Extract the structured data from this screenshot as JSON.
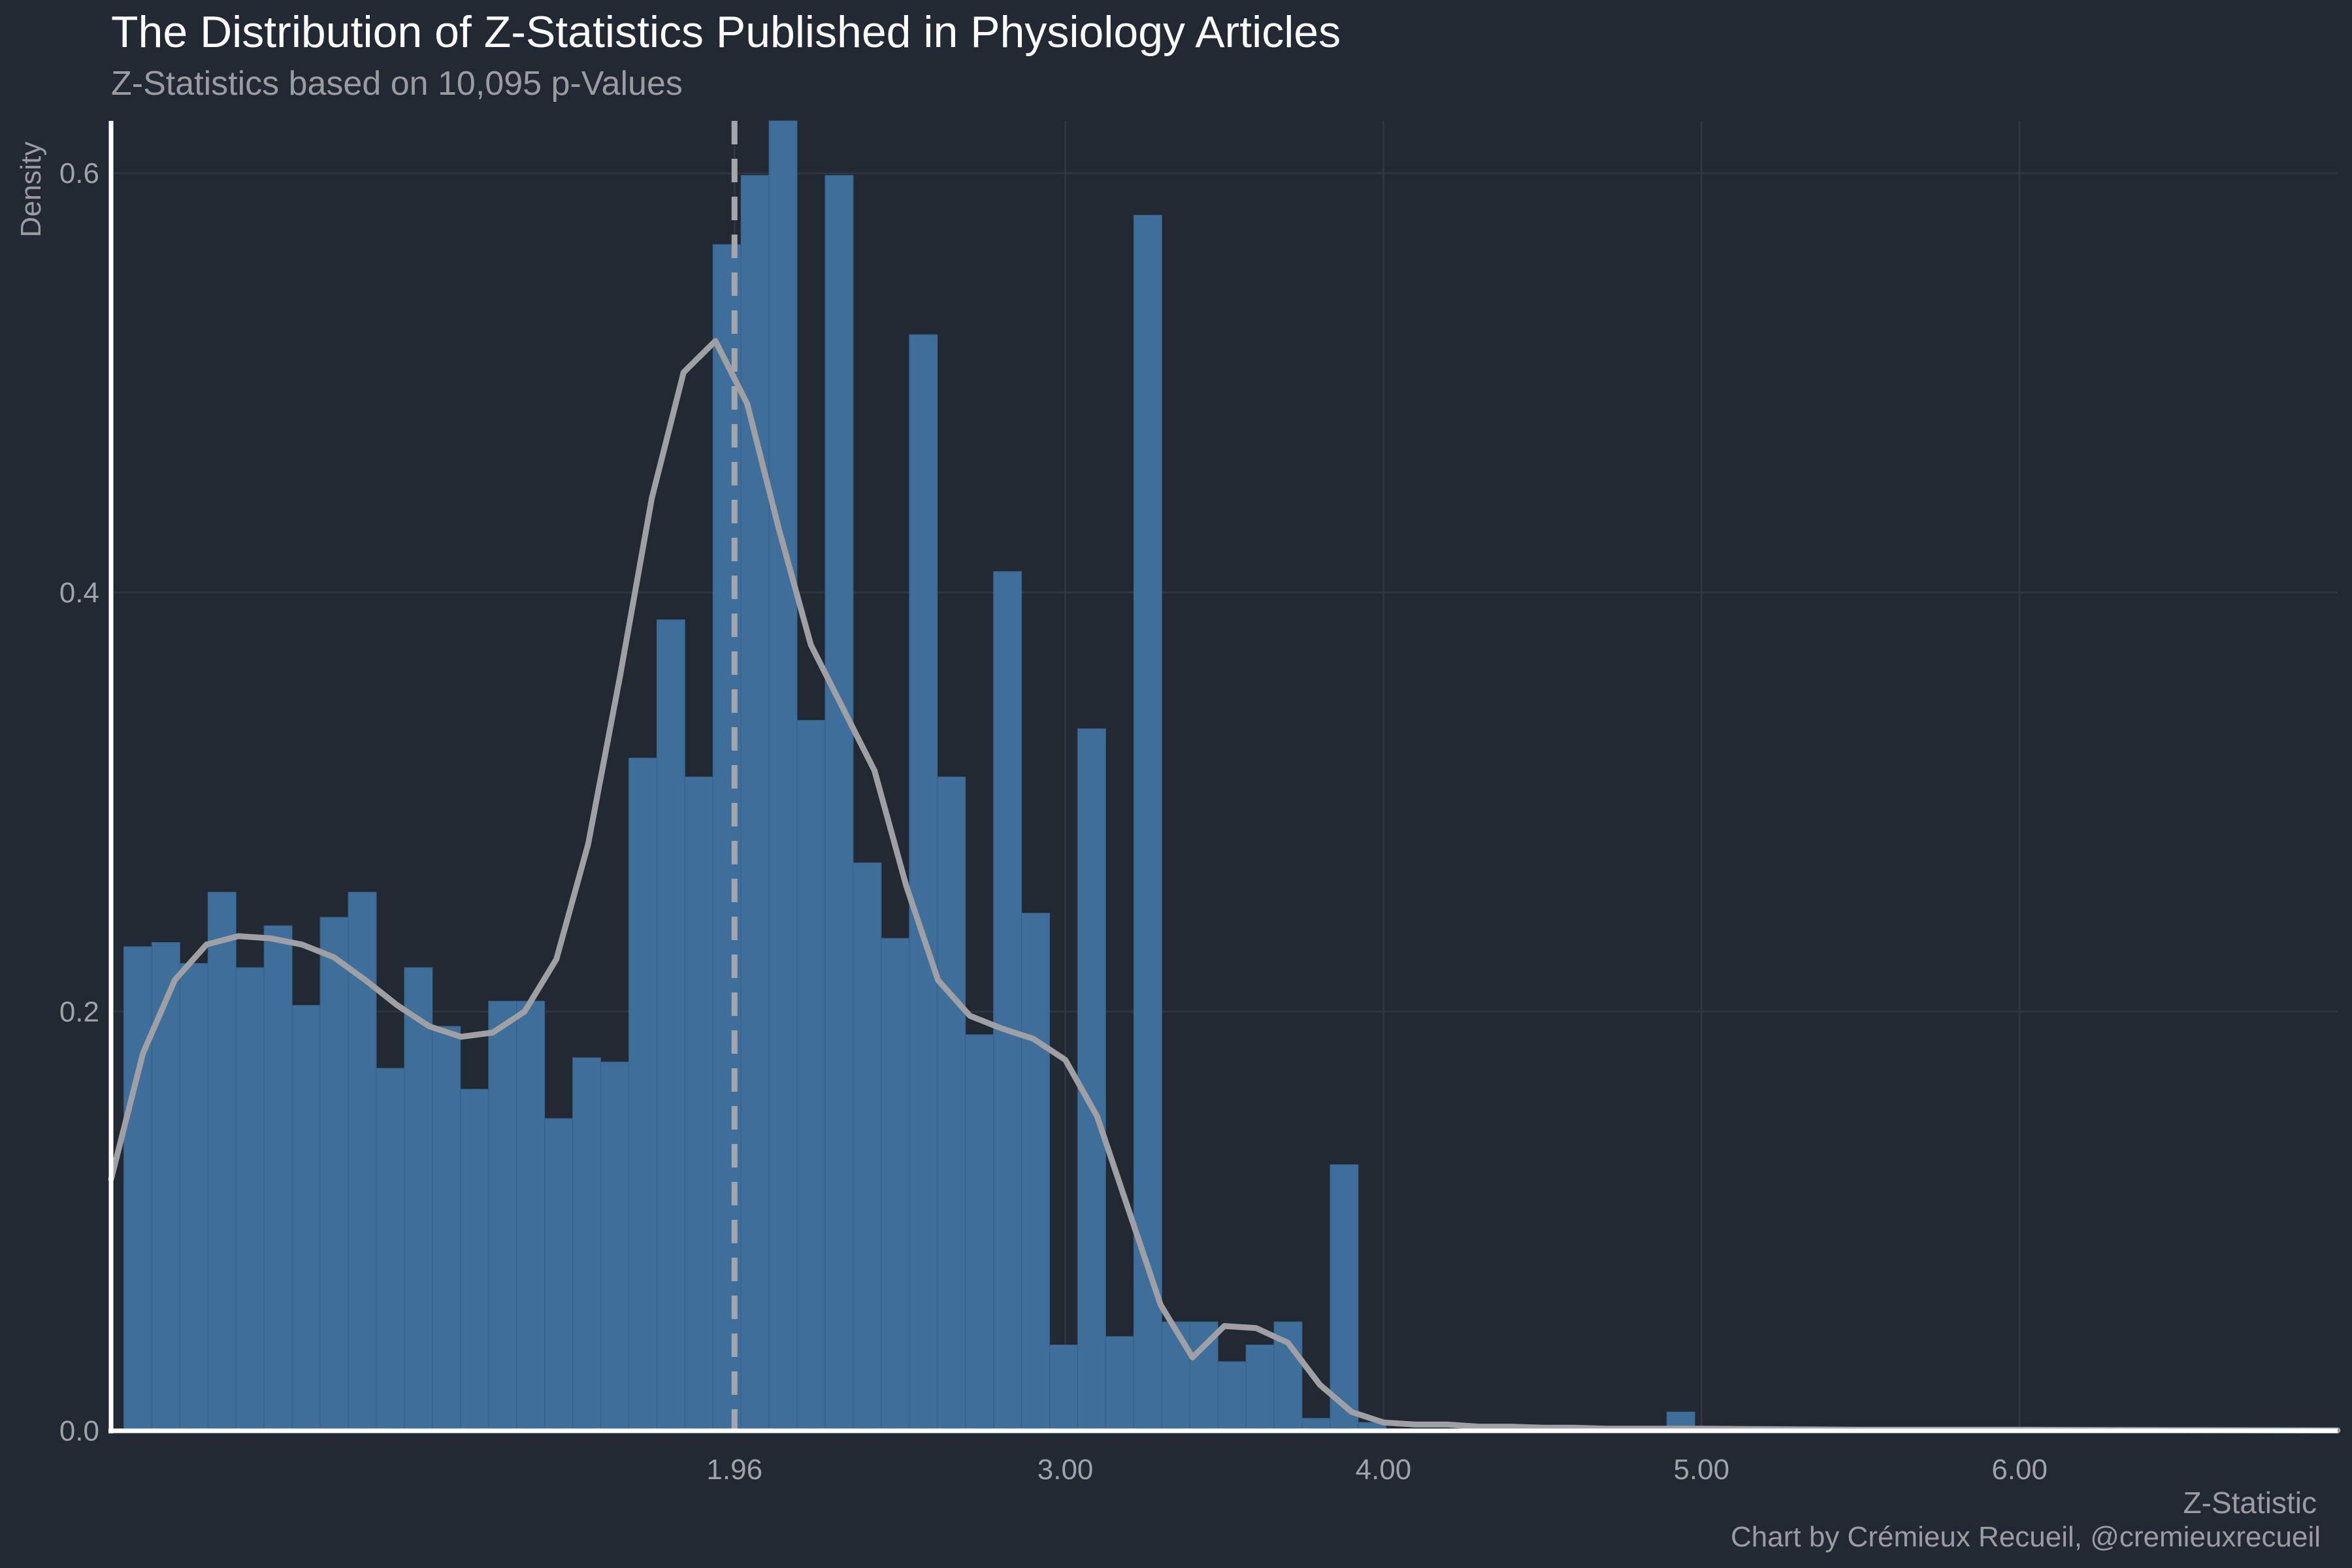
{
  "chart_data": {
    "type": "bar",
    "subtype": "histogram-with-density",
    "title": "The Distribution of Z-Statistics Published in Physiology Articles",
    "subtitle": "Z-Statistics based on 10,095 p-Values",
    "xlabel": "Z-Statistic",
    "ylabel": "Density",
    "caption": "Chart by Crémieux Recueil, @cremieuxrecueil",
    "xlim": [
      0,
      7.0
    ],
    "ylim": [
      0,
      0.625
    ],
    "x_ticks": [
      1.96,
      3.0,
      4.0,
      5.0,
      6.0
    ],
    "x_tick_labels": [
      "1.96",
      "3.00",
      "4.00",
      "5.00",
      "6.00"
    ],
    "y_ticks": [
      0.0,
      0.2,
      0.4,
      0.6
    ],
    "y_tick_labels": [
      "0.0",
      "0.2",
      "0.4",
      "0.6"
    ],
    "reference_line": {
      "x": 1.96,
      "style": "dashed"
    },
    "bin_width": 0.0882,
    "bins_start": 0.04,
    "values": [
      0.231,
      0.233,
      0.223,
      0.257,
      0.221,
      0.241,
      0.203,
      0.245,
      0.257,
      0.173,
      0.221,
      0.193,
      0.163,
      0.205,
      0.205,
      0.149,
      0.178,
      0.176,
      0.321,
      0.387,
      0.312,
      0.566,
      0.599,
      0.625,
      0.339,
      0.599,
      0.271,
      0.235,
      0.523,
      0.312,
      0.189,
      0.41,
      0.247,
      0.041,
      0.335,
      0.045,
      0.58,
      0.052,
      0.052,
      0.033,
      0.041,
      0.052,
      0.006,
      0.127,
      0.004,
      0.0,
      0.0,
      0.0,
      0.0,
      0.0,
      0.0,
      0.0,
      0.0,
      0.0,
      0.0,
      0.009
    ],
    "density_curve": {
      "x": [
        0.0,
        0.1,
        0.2,
        0.3,
        0.4,
        0.5,
        0.6,
        0.7,
        0.8,
        0.9,
        1.0,
        1.1,
        1.2,
        1.3,
        1.4,
        1.5,
        1.6,
        1.7,
        1.8,
        1.9,
        2.0,
        2.1,
        2.2,
        2.3,
        2.4,
        2.5,
        2.6,
        2.7,
        2.8,
        2.9,
        3.0,
        3.1,
        3.2,
        3.3,
        3.4,
        3.5,
        3.6,
        3.7,
        3.8,
        3.9,
        4.0,
        4.1,
        4.2,
        4.3,
        4.4,
        4.5,
        4.6,
        4.7,
        4.8,
        4.9,
        5.0,
        5.5,
        6.0,
        6.5,
        7.0
      ],
      "y": [
        0.12,
        0.18,
        0.215,
        0.232,
        0.236,
        0.235,
        0.232,
        0.226,
        0.215,
        0.203,
        0.193,
        0.188,
        0.19,
        0.2,
        0.225,
        0.28,
        0.36,
        0.445,
        0.505,
        0.52,
        0.49,
        0.43,
        0.375,
        0.345,
        0.315,
        0.26,
        0.215,
        0.198,
        0.192,
        0.187,
        0.177,
        0.15,
        0.105,
        0.06,
        0.035,
        0.05,
        0.049,
        0.042,
        0.022,
        0.009,
        0.004,
        0.003,
        0.003,
        0.002,
        0.002,
        0.0015,
        0.0015,
        0.001,
        0.001,
        0.001,
        0.001,
        0.0005,
        0.0005,
        0.0003,
        0.0002
      ]
    },
    "colors": {
      "background": "#232932",
      "bar": "#3d6f9a",
      "density": "#9ea0a4",
      "reference": "#a3a5a8",
      "grid": "#30363f",
      "axis": "#ffffff",
      "tick_text": "#a0a3a8",
      "title": "#ffffff",
      "subtitle": "#9a9ca1"
    },
    "grid": true
  }
}
